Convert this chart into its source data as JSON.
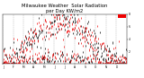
{
  "title": "Milwaukee Weather  Solar Radiation\nper Day KW/m2",
  "title_fontsize": 3.8,
  "background_color": "#ffffff",
  "ylim": [
    0,
    8
  ],
  "xlim": [
    1,
    365
  ],
  "ytick_labels": [
    "2",
    "4",
    "6",
    "8"
  ],
  "ytick_positions": [
    2,
    4,
    6,
    8
  ],
  "grid_color": "#aaaaaa",
  "dot_color_red": "#ee0000",
  "dot_color_black": "#000000",
  "x_month_ticks": [
    1,
    32,
    60,
    91,
    121,
    152,
    182,
    213,
    244,
    274,
    305,
    335
  ],
  "x_month_labels": [
    "J",
    "F",
    "M",
    "A",
    "M",
    "J",
    "J",
    "A",
    "S",
    "O",
    "N",
    "D"
  ],
  "marker_size": 0.8,
  "seed_black": 42,
  "seed_red": 99,
  "num_points": 365,
  "red_bar_x": 340,
  "red_bar_width": 22,
  "red_bar_y": 7.4,
  "red_bar_height": 0.6
}
